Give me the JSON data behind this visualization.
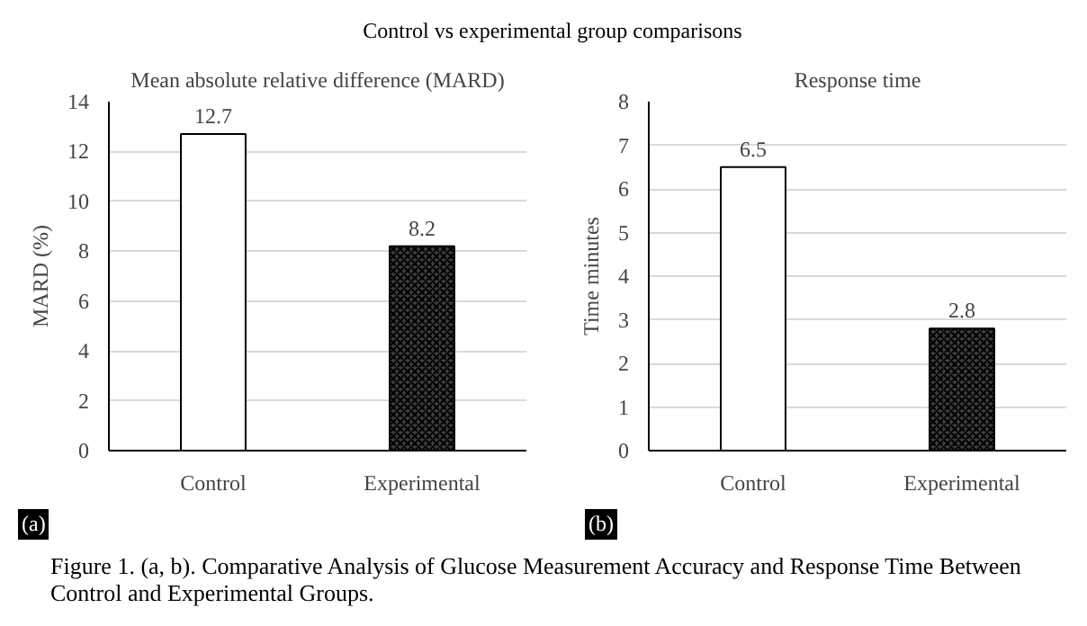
{
  "chart_data": [
    {
      "type": "bar",
      "title": "Mean absolute relative difference (MARD)",
      "ylabel": "MARD (%)",
      "categories": [
        "Control",
        "Experimental"
      ],
      "values": [
        12.7,
        8.2
      ],
      "colors": [
        "#ffffff",
        "#3c3c3c"
      ],
      "ylim": [
        0,
        14
      ],
      "yticks": [
        0,
        2,
        4,
        6,
        8,
        10,
        12,
        14
      ],
      "grid": "y",
      "data_labels": true,
      "annotations": [
        "(a)",
        "Control vs experimental group comparisons",
        "Figure 1. (a, b). Comparative Analysis of Glucose Measurement Accuracy and Response Time Between Control and Experimental Groups."
      ]
    },
    {
      "type": "bar",
      "title": "Response time",
      "ylabel": "Time minutes",
      "categories": [
        "Control",
        "Experimental"
      ],
      "values": [
        6.5,
        2.8
      ],
      "colors": [
        "#ffffff",
        "#3c3c3c"
      ],
      "ylim": [
        0,
        8
      ],
      "yticks": [
        0,
        1,
        2,
        3,
        4,
        5,
        6,
        7,
        8
      ],
      "grid": "y",
      "data_labels": true,
      "annotations": [
        "(b)"
      ]
    }
  ]
}
